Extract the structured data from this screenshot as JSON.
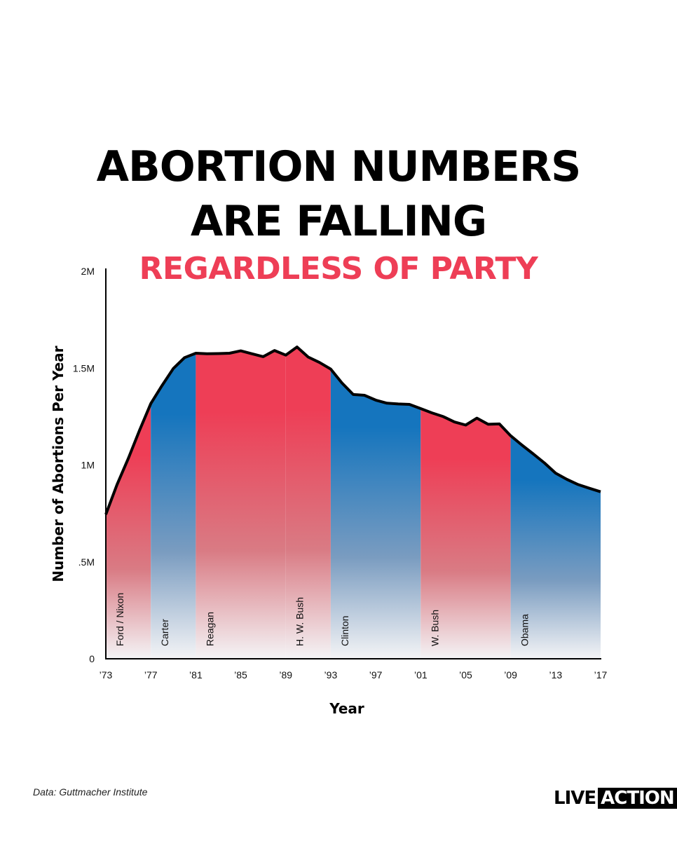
{
  "header": {
    "title_line1": "ABORTION NUMBERS",
    "title_line2": "ARE FALLING",
    "subtitle": "REGARDLESS OF PARTY"
  },
  "colors": {
    "republican": "#EE3E56",
    "democrat": "#1575BE",
    "line": "#000000",
    "subtitle": "#EE3E56"
  },
  "chart_data": {
    "type": "area",
    "title": "ABORTION NUMBERS ARE FALLING",
    "subtitle": "REGARDLESS OF PARTY",
    "xlabel": "Year",
    "ylabel": "Number of Abortions Per Year",
    "xlim": [
      1973,
      2017
    ],
    "ylim": [
      0,
      2000000
    ],
    "x_ticks": [
      1973,
      1977,
      1981,
      1985,
      1989,
      1993,
      1997,
      2001,
      2005,
      2009,
      2013,
      2017
    ],
    "x_tick_labels": [
      "’73",
      "’77",
      "’81",
      "’85",
      "’89",
      "’93",
      "’97",
      "’01",
      "’05",
      "’09",
      "’13",
      "’17"
    ],
    "y_ticks": [
      0,
      500000,
      1000000,
      1500000,
      2000000
    ],
    "y_tick_labels": [
      "0",
      ".5M",
      "1M",
      "1.5M",
      "2M"
    ],
    "grid": false,
    "series": [
      {
        "x": [
          1973,
          1974,
          1975,
          1976,
          1977,
          1978,
          1979,
          1980,
          1981,
          1982,
          1983,
          1984,
          1985,
          1986,
          1987,
          1988,
          1989,
          1990,
          1991,
          1992,
          1993,
          1994,
          1995,
          1996,
          1997,
          1998,
          1999,
          2000,
          2001,
          2002,
          2003,
          2004,
          2005,
          2006,
          2007,
          2008,
          2009,
          2010,
          2011,
          2012,
          2013,
          2014,
          2015,
          2016,
          2017
        ],
        "values": [
          745000,
          899000,
          1034000,
          1179000,
          1317000,
          1410000,
          1498000,
          1554000,
          1577000,
          1574000,
          1575000,
          1577000,
          1589000,
          1574000,
          1559000,
          1591000,
          1567000,
          1609000,
          1557000,
          1529000,
          1495000,
          1423000,
          1364000,
          1360000,
          1335000,
          1319000,
          1315000,
          1313000,
          1291000,
          1269000,
          1250000,
          1222000,
          1206000,
          1242000,
          1210000,
          1212000,
          1151000,
          1103000,
          1058000,
          1011000,
          958000,
          926000,
          899000,
          880000,
          862000
        ]
      }
    ],
    "presidencies": [
      {
        "label": "Ford / Nixon",
        "start": 1973,
        "end": 1977,
        "party": "R"
      },
      {
        "label": "Carter",
        "start": 1977,
        "end": 1981,
        "party": "D"
      },
      {
        "label": "Reagan",
        "start": 1981,
        "end": 1989,
        "party": "R"
      },
      {
        "label": "H. W. Bush",
        "start": 1989,
        "end": 1993,
        "party": "R"
      },
      {
        "label": "Clinton",
        "start": 1993,
        "end": 2001,
        "party": "D"
      },
      {
        "label": "W. Bush",
        "start": 2001,
        "end": 2009,
        "party": "R"
      },
      {
        "label": "Obama",
        "start": 2009,
        "end": 2017,
        "party": "D"
      }
    ]
  },
  "footer": {
    "source": "Data: Guttmacher Institute",
    "logo_live": "LIVE",
    "logo_action": "ACTION"
  }
}
